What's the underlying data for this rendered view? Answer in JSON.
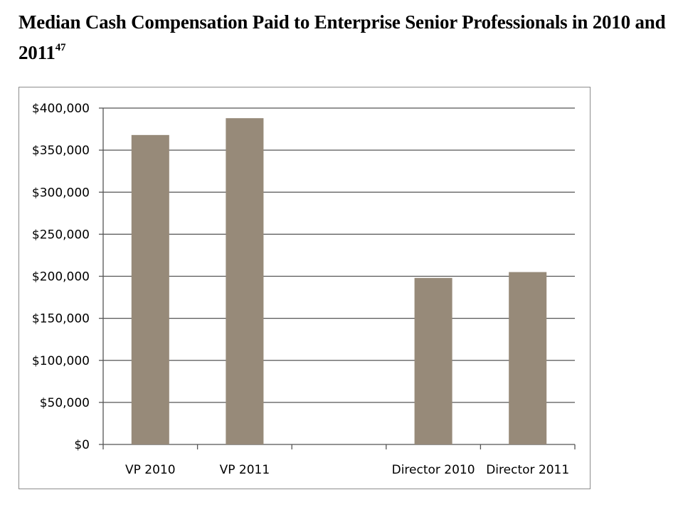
{
  "title": {
    "text": "Median Cash Compensation Paid to Enterprise Senior Professionals in 2010 and 2011",
    "footnote": "47"
  },
  "colors": {
    "bar": "#978a79",
    "grid": "#555555",
    "frame": "#8c8c8c"
  },
  "chart_data": {
    "type": "bar",
    "title": "Median Cash Compensation Paid to Enterprise Senior Professionals in 2010 and 2011",
    "xlabel": "",
    "ylabel": "",
    "categories": [
      "VP 2010",
      "VP 2011",
      "",
      "Director 2010",
      "Director 2011"
    ],
    "values": [
      368000,
      388000,
      null,
      198000,
      205000
    ],
    "ylim": [
      0,
      400000
    ],
    "yticks": [
      0,
      50000,
      100000,
      150000,
      200000,
      250000,
      300000,
      350000,
      400000
    ],
    "ytick_labels": [
      "$0",
      "$50,000",
      "$100,000",
      "$150,000",
      "$200,000",
      "$250,000",
      "$300,000",
      "$350,000",
      "$400,000"
    ],
    "grid": true,
    "legend": "none"
  }
}
